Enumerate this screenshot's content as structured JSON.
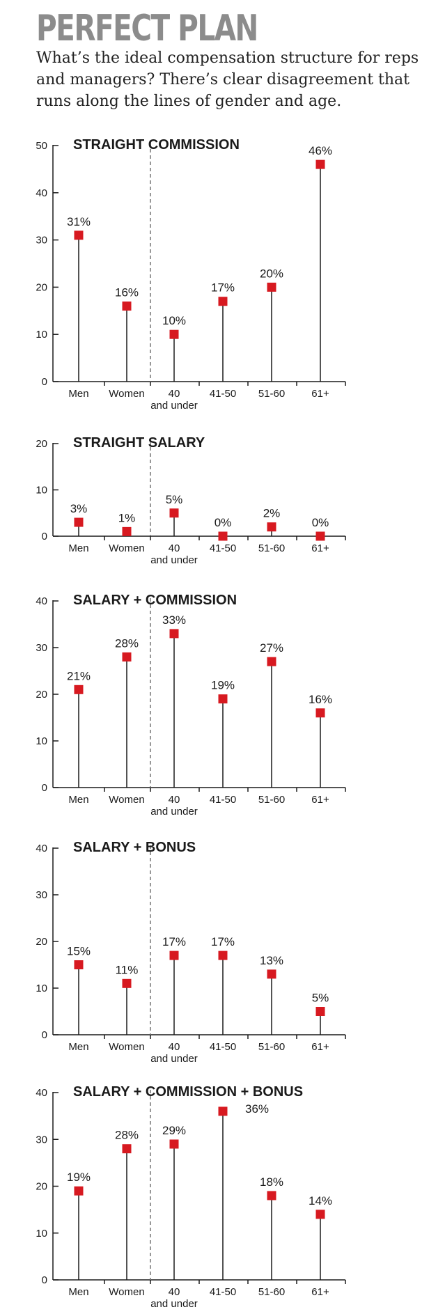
{
  "header": {
    "title": "PERFECT PLAN",
    "subtitle": "What’s the ideal compensation structure for reps and managers? There’s clear disagreement that runs along the lines of gender and age."
  },
  "colors": {
    "marker": "#d71920",
    "axis": "#1a1a1a",
    "divider": "#777777"
  },
  "chart_data": [
    {
      "type": "scatter",
      "title": "STRAIGHT COMMISSION",
      "categories": [
        "Men",
        "Women",
        "40|and under",
        "41-50",
        "51-60",
        "61+"
      ],
      "values": [
        31,
        16,
        10,
        17,
        20,
        46
      ],
      "labels": [
        "31%",
        "16%",
        "10%",
        "17%",
        "20%",
        "46%"
      ],
      "ylim": [
        0,
        50
      ],
      "yticks": [
        0,
        10,
        20,
        30,
        40,
        50
      ]
    },
    {
      "type": "scatter",
      "title": "STRAIGHT SALARY",
      "categories": [
        "Men",
        "Women",
        "40|and under",
        "41-50",
        "51-60",
        "61+"
      ],
      "values": [
        3,
        1,
        5,
        0,
        2,
        0
      ],
      "labels": [
        "3%",
        "1%",
        "5%",
        "0%",
        "2%",
        "0%"
      ],
      "ylim": [
        0,
        20
      ],
      "yticks": [
        0,
        10,
        20
      ]
    },
    {
      "type": "scatter",
      "title": "SALARY + COMMISSION",
      "categories": [
        "Men",
        "Women",
        "40|and under",
        "41-50",
        "51-60",
        "61+"
      ],
      "values": [
        21,
        28,
        33,
        19,
        27,
        16
      ],
      "labels": [
        "21%",
        "28%",
        "33%",
        "19%",
        "27%",
        "16%"
      ],
      "ylim": [
        0,
        40
      ],
      "yticks": [
        0,
        10,
        20,
        30,
        40
      ]
    },
    {
      "type": "scatter",
      "title": "SALARY + BONUS",
      "categories": [
        "Men",
        "Women",
        "40|and under",
        "41-50",
        "51-60",
        "61+"
      ],
      "values": [
        15,
        11,
        17,
        17,
        13,
        5
      ],
      "labels": [
        "15%",
        "11%",
        "17%",
        "17%",
        "13%",
        "5%"
      ],
      "ylim": [
        0,
        40
      ],
      "yticks": [
        0,
        10,
        20,
        30,
        40
      ]
    },
    {
      "type": "scatter",
      "title": "SALARY + COMMISSION + BONUS",
      "categories": [
        "Men",
        "Women",
        "40|and under",
        "41-50",
        "51-60",
        "61+"
      ],
      "values": [
        19,
        28,
        29,
        36,
        18,
        14
      ],
      "labels": [
        "19%",
        "28%",
        "29%",
        "36%",
        "18%",
        "14%"
      ],
      "ylim": [
        0,
        40
      ],
      "yticks": [
        0,
        10,
        20,
        30,
        40
      ]
    }
  ]
}
